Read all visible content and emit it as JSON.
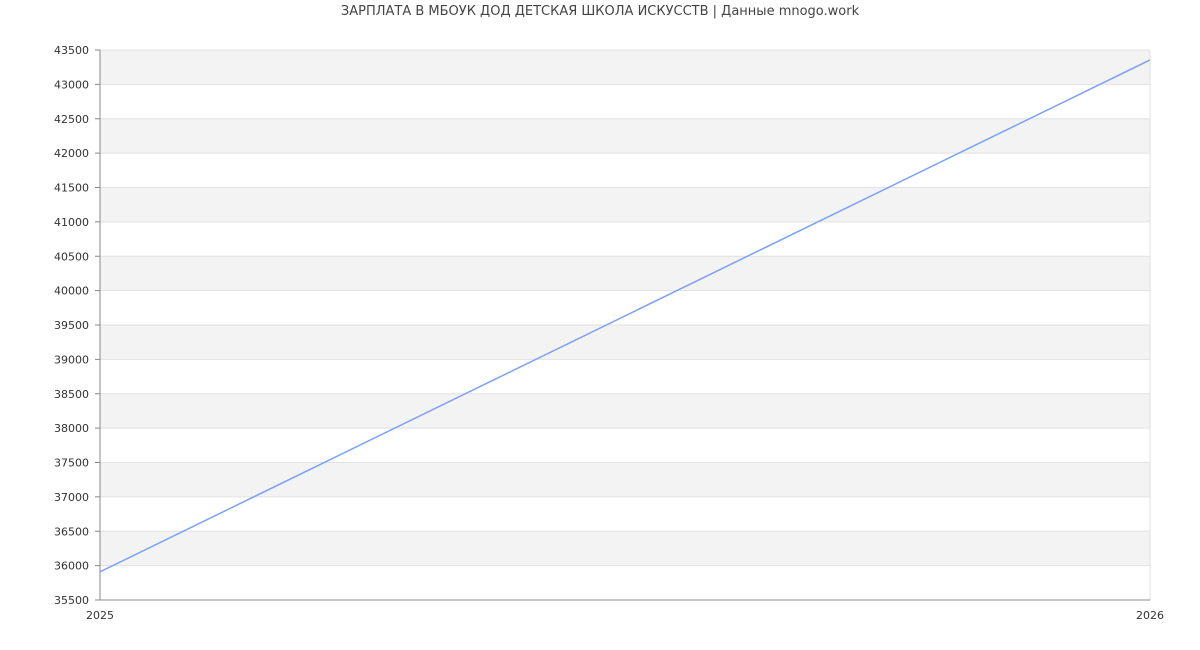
{
  "chart_data": {
    "type": "line",
    "title": "ЗАРПЛАТА В МБОУК ДОД ДЕТСКАЯ ШКОЛА ИСКУССТВ | Данные mnogo.work",
    "xlabel": "",
    "ylabel": "",
    "x": [
      2025,
      2026
    ],
    "x_ticks": [
      "2025",
      "2026"
    ],
    "series": [
      {
        "values": [
          35910,
          43355
        ],
        "color": "#7aa1f5"
      }
    ],
    "ylim": [
      35500,
      43500
    ],
    "y_ticks": [
      35500,
      36000,
      36500,
      37000,
      37500,
      38000,
      38500,
      39000,
      39500,
      40000,
      40500,
      41000,
      41500,
      42000,
      42500,
      43000,
      43500
    ],
    "grid": true,
    "band_color": "#f3f3f3"
  }
}
